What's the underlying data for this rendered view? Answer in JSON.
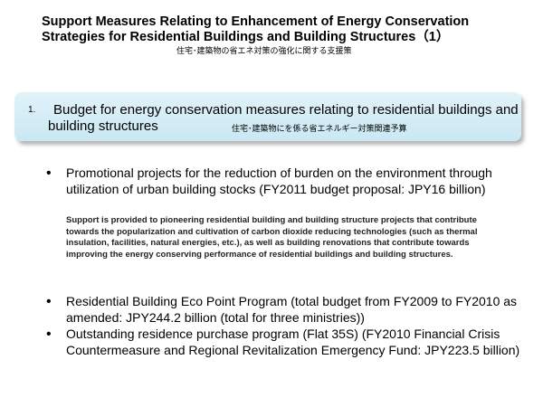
{
  "title": {
    "line1": "Support Measures Relating to Enhancement of Energy Conservation",
    "line2": "Strategies for Residential Buildings and Building Structures（1）",
    "subtitle_jp": "住宅･建築物の省エネ対策の強化に関する支援策"
  },
  "section": {
    "number": "1.",
    "line1": "Budget for energy conservation measures relating to residential buildings and",
    "line2": "building structures",
    "jp": "住宅･建築物にを係る省エネルギー対策関連予算"
  },
  "items": [
    {
      "bullet": "•",
      "text": "Promotional projects for the reduction of burden on the environment through utilization of urban building stocks (FY2011 budget proposal: JPY16 billion)",
      "detail": "Support is provided to pioneering residential building and building structure projects that contribute towards the popularization and cultivation of carbon dioxide reducing technologies (such as thermal insulation, facilities, natural energies, etc.), as well as building renovations that contribute towards improving the energy conserving performance of residential buildings and building structures."
    },
    {
      "bullet": "•",
      "text": "Residential Building Eco Point Program (total budget from FY2009 to FY2010 as amended: JPY244.2 billion (total for three ministries))"
    },
    {
      "bullet": "•",
      "text": "Outstanding residence purchase program (Flat 35S) (FY2010 Financial Crisis Countermeasure and Regional Revitalization Emergency Fund: JPY223.5 billion)"
    }
  ]
}
